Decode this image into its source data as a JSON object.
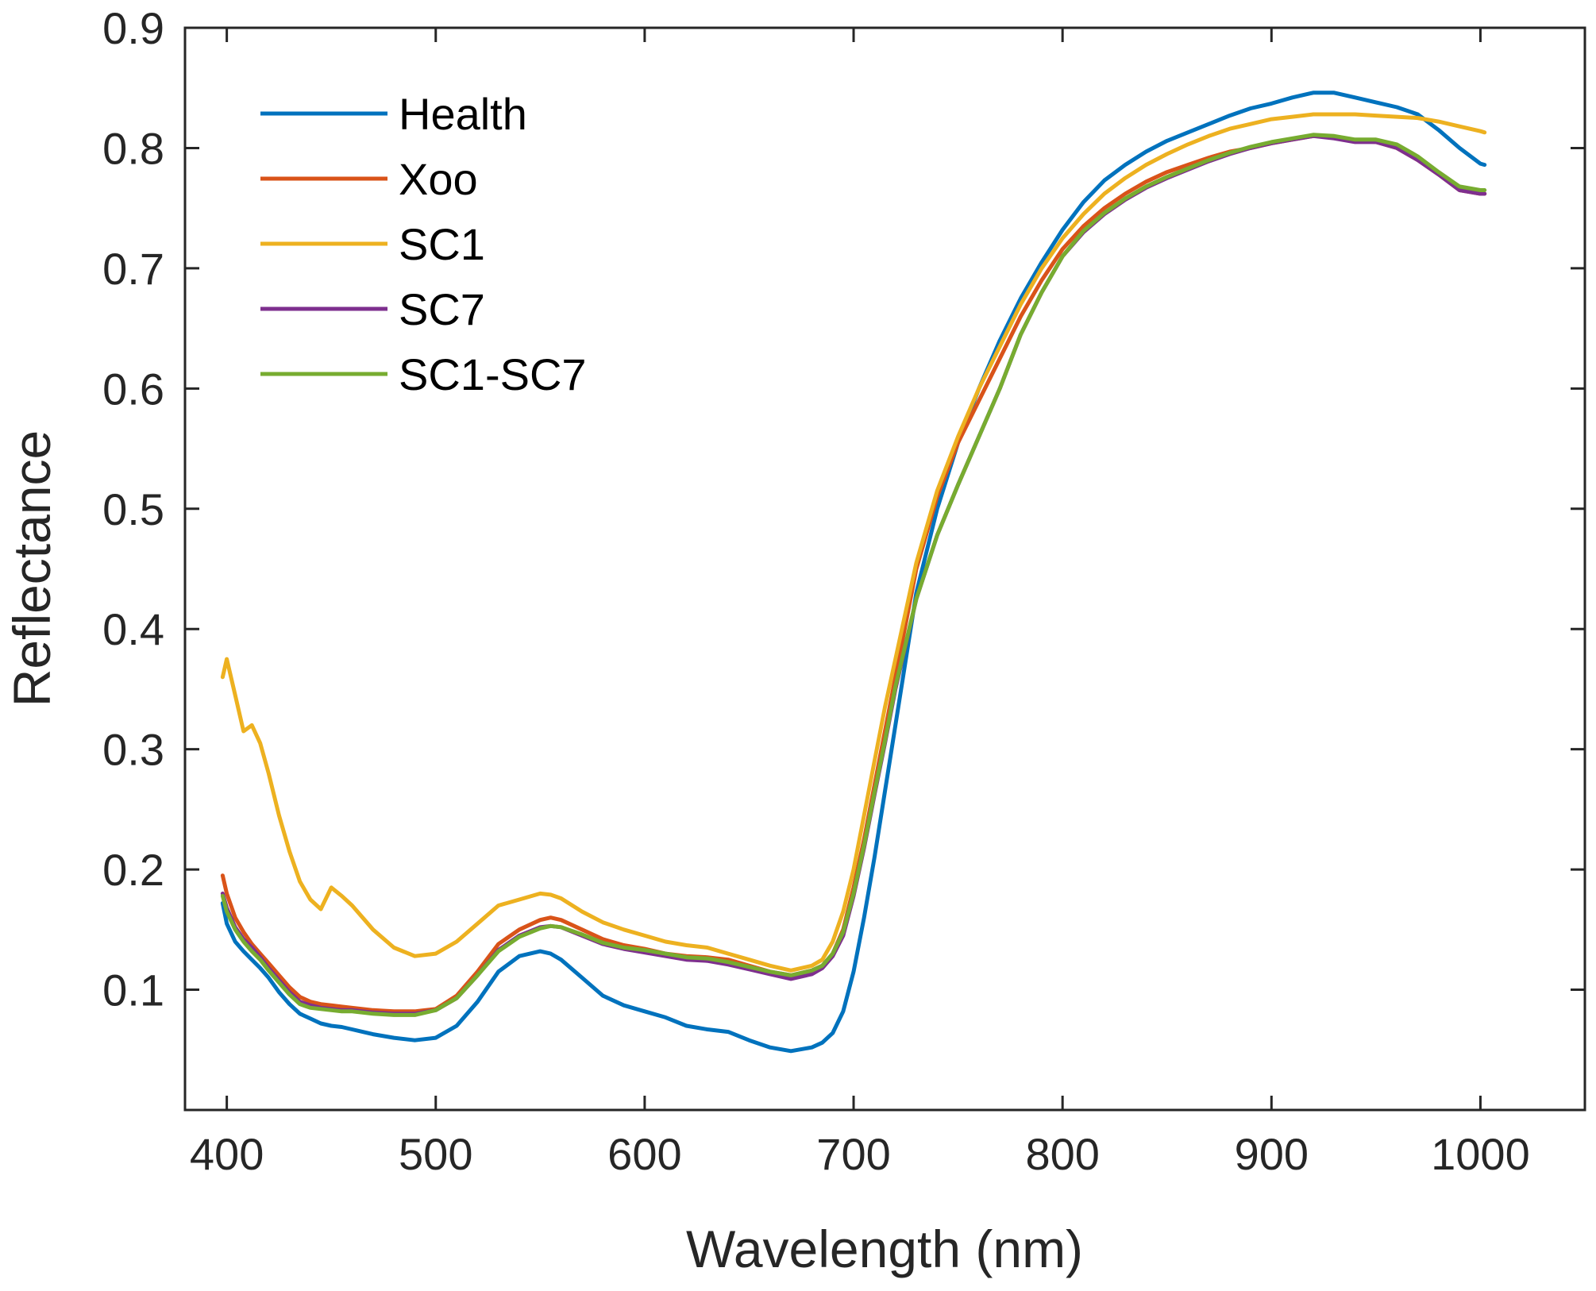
{
  "chart_data": {
    "type": "line",
    "title": "",
    "xlabel": "Wavelength (nm)",
    "ylabel": "Reflectance",
    "xlim": [
      380,
      1050
    ],
    "ylim": [
      0,
      0.9
    ],
    "xticks": [
      400,
      500,
      600,
      700,
      800,
      900,
      1000
    ],
    "xtick_labels": [
      "400",
      "500",
      "600",
      "700",
      "800",
      "900",
      "1000"
    ],
    "yticks": [
      0.1,
      0.2,
      0.3,
      0.4,
      0.5,
      0.6,
      0.7,
      0.8,
      0.9
    ],
    "ytick_labels": [
      "0.1",
      "0.2",
      "0.3",
      "0.4",
      "0.5",
      "0.6",
      "0.7",
      "0.8",
      "0.9"
    ],
    "grid": false,
    "legend_position": "top-left",
    "x": [
      398,
      400,
      404,
      408,
      412,
      416,
      420,
      425,
      430,
      435,
      440,
      445,
      450,
      455,
      460,
      465,
      470,
      480,
      490,
      500,
      510,
      520,
      530,
      540,
      550,
      555,
      560,
      570,
      580,
      590,
      600,
      610,
      620,
      630,
      640,
      650,
      660,
      670,
      680,
      685,
      690,
      695,
      700,
      705,
      710,
      715,
      720,
      730,
      740,
      750,
      760,
      770,
      780,
      790,
      800,
      810,
      820,
      830,
      840,
      850,
      860,
      870,
      880,
      890,
      900,
      910,
      920,
      930,
      940,
      950,
      960,
      970,
      980,
      990,
      1000,
      1002
    ],
    "series": [
      {
        "name": "Health",
        "color": "#0072BD",
        "values": [
          0.172,
          0.155,
          0.14,
          0.132,
          0.125,
          0.118,
          0.11,
          0.098,
          0.088,
          0.08,
          0.076,
          0.072,
          0.07,
          0.069,
          0.067,
          0.065,
          0.063,
          0.06,
          0.058,
          0.06,
          0.07,
          0.09,
          0.115,
          0.128,
          0.132,
          0.13,
          0.125,
          0.11,
          0.095,
          0.087,
          0.082,
          0.077,
          0.07,
          0.067,
          0.065,
          0.058,
          0.052,
          0.049,
          0.052,
          0.056,
          0.064,
          0.082,
          0.115,
          0.16,
          0.21,
          0.265,
          0.32,
          0.43,
          0.5,
          0.555,
          0.6,
          0.64,
          0.675,
          0.705,
          0.732,
          0.755,
          0.773,
          0.786,
          0.797,
          0.806,
          0.813,
          0.82,
          0.827,
          0.833,
          0.837,
          0.842,
          0.846,
          0.846,
          0.842,
          0.838,
          0.834,
          0.828,
          0.815,
          0.8,
          0.787,
          0.786
        ]
      },
      {
        "name": "Xoo",
        "color": "#D95319",
        "values": [
          0.195,
          0.18,
          0.16,
          0.148,
          0.138,
          0.13,
          0.122,
          0.112,
          0.102,
          0.094,
          0.09,
          0.088,
          0.087,
          0.086,
          0.085,
          0.084,
          0.083,
          0.082,
          0.082,
          0.084,
          0.095,
          0.115,
          0.138,
          0.15,
          0.158,
          0.16,
          0.158,
          0.15,
          0.142,
          0.137,
          0.134,
          0.13,
          0.128,
          0.127,
          0.125,
          0.12,
          0.115,
          0.112,
          0.116,
          0.12,
          0.13,
          0.15,
          0.185,
          0.225,
          0.27,
          0.315,
          0.36,
          0.45,
          0.51,
          0.555,
          0.59,
          0.625,
          0.66,
          0.69,
          0.716,
          0.735,
          0.75,
          0.762,
          0.772,
          0.78,
          0.786,
          0.792,
          0.797,
          0.8,
          0.804,
          0.807,
          0.81,
          0.809,
          0.806,
          0.805,
          0.8,
          0.79,
          0.778,
          0.765,
          0.762,
          0.762
        ]
      },
      {
        "name": "SC1",
        "color": "#EDB120",
        "values": [
          0.36,
          0.375,
          0.345,
          0.315,
          0.32,
          0.305,
          0.28,
          0.245,
          0.215,
          0.19,
          0.175,
          0.167,
          0.185,
          0.178,
          0.17,
          0.16,
          0.15,
          0.135,
          0.128,
          0.13,
          0.14,
          0.155,
          0.17,
          0.175,
          0.18,
          0.179,
          0.176,
          0.165,
          0.156,
          0.15,
          0.145,
          0.14,
          0.137,
          0.135,
          0.13,
          0.125,
          0.12,
          0.116,
          0.12,
          0.125,
          0.14,
          0.165,
          0.2,
          0.245,
          0.29,
          0.335,
          0.375,
          0.455,
          0.515,
          0.56,
          0.6,
          0.635,
          0.67,
          0.7,
          0.725,
          0.745,
          0.762,
          0.775,
          0.786,
          0.795,
          0.803,
          0.81,
          0.816,
          0.82,
          0.824,
          0.826,
          0.828,
          0.828,
          0.828,
          0.827,
          0.826,
          0.825,
          0.822,
          0.818,
          0.814,
          0.813
        ]
      },
      {
        "name": "SC7",
        "color": "#7E2F8E",
        "values": [
          0.18,
          0.168,
          0.152,
          0.142,
          0.135,
          0.127,
          0.118,
          0.108,
          0.098,
          0.09,
          0.087,
          0.085,
          0.084,
          0.083,
          0.083,
          0.082,
          0.081,
          0.08,
          0.08,
          0.083,
          0.093,
          0.112,
          0.133,
          0.145,
          0.152,
          0.153,
          0.152,
          0.145,
          0.138,
          0.134,
          0.131,
          0.128,
          0.125,
          0.124,
          0.121,
          0.117,
          0.113,
          0.109,
          0.113,
          0.118,
          0.128,
          0.145,
          0.178,
          0.218,
          0.262,
          0.305,
          0.35,
          0.425,
          0.478,
          0.52,
          0.56,
          0.6,
          0.645,
          0.68,
          0.71,
          0.73,
          0.745,
          0.757,
          0.767,
          0.775,
          0.782,
          0.789,
          0.795,
          0.8,
          0.804,
          0.807,
          0.81,
          0.808,
          0.805,
          0.805,
          0.8,
          0.79,
          0.778,
          0.765,
          0.762,
          0.762
        ]
      },
      {
        "name": "SC1-SC7",
        "color": "#77AC30",
        "values": [
          0.178,
          0.165,
          0.15,
          0.14,
          0.132,
          0.125,
          0.116,
          0.106,
          0.096,
          0.088,
          0.085,
          0.084,
          0.083,
          0.082,
          0.082,
          0.081,
          0.08,
          0.079,
          0.079,
          0.083,
          0.093,
          0.112,
          0.132,
          0.144,
          0.151,
          0.153,
          0.152,
          0.146,
          0.139,
          0.135,
          0.133,
          0.13,
          0.127,
          0.126,
          0.123,
          0.119,
          0.115,
          0.112,
          0.116,
          0.12,
          0.13,
          0.148,
          0.18,
          0.22,
          0.264,
          0.307,
          0.352,
          0.425,
          0.478,
          0.52,
          0.56,
          0.6,
          0.645,
          0.68,
          0.71,
          0.731,
          0.746,
          0.758,
          0.768,
          0.776,
          0.783,
          0.79,
          0.796,
          0.801,
          0.805,
          0.808,
          0.811,
          0.81,
          0.807,
          0.807,
          0.803,
          0.793,
          0.78,
          0.768,
          0.765,
          0.765
        ]
      }
    ]
  }
}
